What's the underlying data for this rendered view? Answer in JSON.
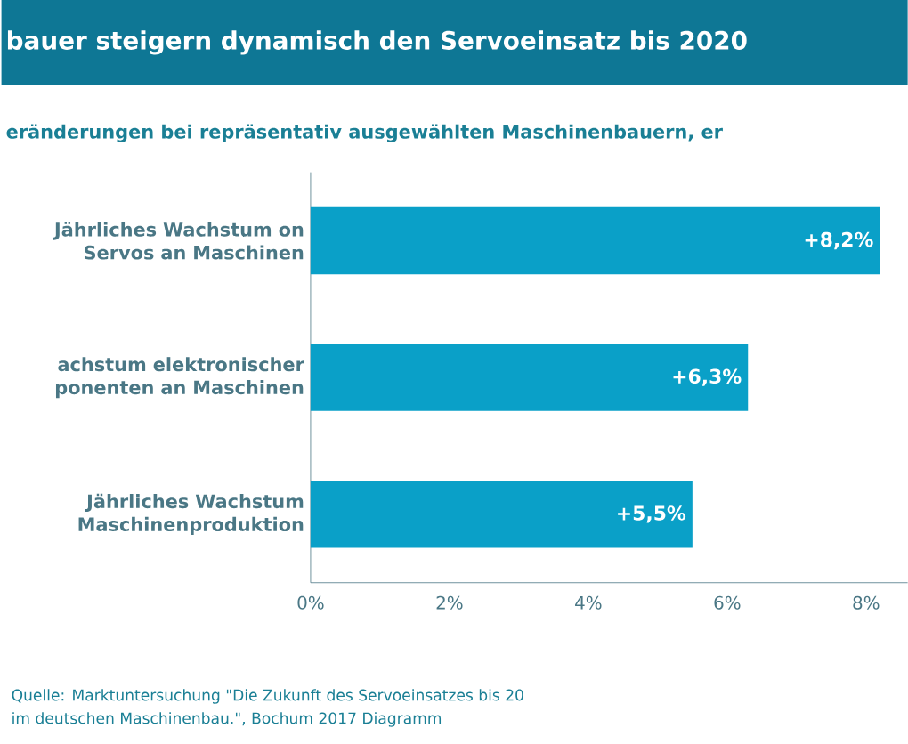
{
  "chart_data": {
    "type": "bar",
    "orientation": "horizontal",
    "title": "bauer steigern dynamisch den Servoeinsatz bis 2020",
    "subtitle": "eränderungen bei repräsentativ ausgewählten Maschinenbauern, er",
    "categories": [
      "Jährliches Wachstum on Servos an Maschinen",
      "achstum elektronischer ponenten an Maschinen",
      "Jährliches Wachstum Maschinenproduktion"
    ],
    "values": [
      8.2,
      6.3,
      5.5
    ],
    "color": "#0aa0c8",
    "value_labels": [
      "+8,2%",
      "+6,3%",
      "+5,5%"
    ],
    "xlim": [
      0,
      8.6
    ],
    "xticks": [
      {
        "value": 0,
        "label": "0%"
      },
      {
        "value": 2,
        "label": "2%"
      },
      {
        "value": 4,
        "label": "4%"
      },
      {
        "value": 6,
        "label": "6%"
      },
      {
        "value": 8,
        "label": "8%"
      }
    ],
    "annotations": [
      "Quelle: Marktuntersuchung \"Die Zukunft des Servoeinsatzes bis 20",
      "im deutschen Maschinenbau.\", Bochum 2017 Diagramm"
    ]
  }
}
